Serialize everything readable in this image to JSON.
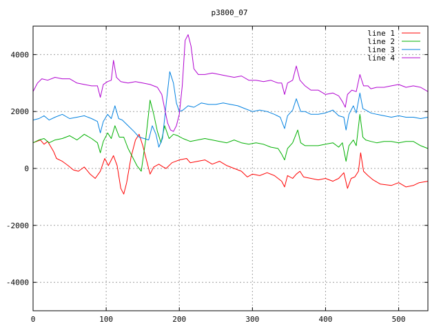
{
  "chart_data": {
    "type": "line",
    "title": "p3800_07",
    "xlabel": "",
    "ylabel": "",
    "xlim": [
      0,
      540
    ],
    "ylim": [
      -5000,
      5000
    ],
    "xticks": [
      0,
      100,
      200,
      300,
      400,
      500
    ],
    "yticks": [
      -4000,
      -2000,
      0,
      2000,
      4000
    ],
    "grid": true,
    "legend_position": "top-right",
    "series": [
      {
        "name": "line 1",
        "color": "#ff0000",
        "points": [
          [
            0,
            900
          ],
          [
            10,
            1000
          ],
          [
            15,
            850
          ],
          [
            20,
            950
          ],
          [
            28,
            600
          ],
          [
            32,
            350
          ],
          [
            40,
            250
          ],
          [
            48,
            100
          ],
          [
            55,
            -50
          ],
          [
            62,
            -100
          ],
          [
            70,
            50
          ],
          [
            78,
            -200
          ],
          [
            85,
            -350
          ],
          [
            92,
            -100
          ],
          [
            98,
            350
          ],
          [
            103,
            100
          ],
          [
            110,
            450
          ],
          [
            115,
            100
          ],
          [
            120,
            -700
          ],
          [
            124,
            -900
          ],
          [
            128,
            -500
          ],
          [
            134,
            400
          ],
          [
            140,
            1000
          ],
          [
            145,
            1200
          ],
          [
            150,
            800
          ],
          [
            155,
            300
          ],
          [
            160,
            -200
          ],
          [
            165,
            50
          ],
          [
            172,
            150
          ],
          [
            178,
            50
          ],
          [
            182,
            0
          ],
          [
            190,
            200
          ],
          [
            200,
            300
          ],
          [
            210,
            350
          ],
          [
            215,
            200
          ],
          [
            225,
            250
          ],
          [
            235,
            300
          ],
          [
            245,
            150
          ],
          [
            255,
            250
          ],
          [
            265,
            100
          ],
          [
            275,
            0
          ],
          [
            285,
            -100
          ],
          [
            293,
            -300
          ],
          [
            300,
            -200
          ],
          [
            310,
            -250
          ],
          [
            320,
            -150
          ],
          [
            330,
            -250
          ],
          [
            340,
            -450
          ],
          [
            344,
            -650
          ],
          [
            348,
            -250
          ],
          [
            355,
            -350
          ],
          [
            360,
            -200
          ],
          [
            365,
            -100
          ],
          [
            370,
            -300
          ],
          [
            380,
            -350
          ],
          [
            390,
            -400
          ],
          [
            400,
            -350
          ],
          [
            410,
            -450
          ],
          [
            418,
            -350
          ],
          [
            425,
            -150
          ],
          [
            430,
            -700
          ],
          [
            435,
            -350
          ],
          [
            440,
            -300
          ],
          [
            445,
            -100
          ],
          [
            448,
            550
          ],
          [
            452,
            -100
          ],
          [
            458,
            -250
          ],
          [
            465,
            -400
          ],
          [
            475,
            -550
          ],
          [
            490,
            -600
          ],
          [
            500,
            -500
          ],
          [
            510,
            -650
          ],
          [
            520,
            -600
          ],
          [
            528,
            -500
          ],
          [
            540,
            -450
          ]
        ]
      },
      {
        "name": "line 2",
        "color": "#00b000",
        "points": [
          [
            0,
            900
          ],
          [
            8,
            1000
          ],
          [
            15,
            1050
          ],
          [
            22,
            900
          ],
          [
            30,
            1000
          ],
          [
            40,
            1050
          ],
          [
            50,
            1150
          ],
          [
            60,
            1000
          ],
          [
            70,
            1200
          ],
          [
            80,
            1050
          ],
          [
            88,
            900
          ],
          [
            92,
            550
          ],
          [
            96,
            950
          ],
          [
            102,
            1250
          ],
          [
            107,
            1050
          ],
          [
            112,
            1500
          ],
          [
            118,
            1100
          ],
          [
            124,
            1100
          ],
          [
            130,
            700
          ],
          [
            136,
            400
          ],
          [
            142,
            100
          ],
          [
            148,
            -100
          ],
          [
            154,
            1000
          ],
          [
            160,
            2400
          ],
          [
            165,
            1900
          ],
          [
            170,
            1300
          ],
          [
            175,
            900
          ],
          [
            180,
            1500
          ],
          [
            186,
            1050
          ],
          [
            192,
            1200
          ],
          [
            198,
            1150
          ],
          [
            205,
            1050
          ],
          [
            215,
            950
          ],
          [
            225,
            1000
          ],
          [
            235,
            1050
          ],
          [
            245,
            1000
          ],
          [
            255,
            950
          ],
          [
            265,
            900
          ],
          [
            275,
            1000
          ],
          [
            285,
            900
          ],
          [
            295,
            850
          ],
          [
            305,
            900
          ],
          [
            315,
            850
          ],
          [
            325,
            750
          ],
          [
            335,
            700
          ],
          [
            340,
            500
          ],
          [
            344,
            300
          ],
          [
            348,
            700
          ],
          [
            355,
            900
          ],
          [
            362,
            1350
          ],
          [
            366,
            900
          ],
          [
            372,
            800
          ],
          [
            380,
            800
          ],
          [
            390,
            800
          ],
          [
            400,
            850
          ],
          [
            410,
            900
          ],
          [
            418,
            750
          ],
          [
            423,
            900
          ],
          [
            428,
            250
          ],
          [
            432,
            800
          ],
          [
            438,
            1000
          ],
          [
            442,
            800
          ],
          [
            447,
            1900
          ],
          [
            451,
            1100
          ],
          [
            455,
            1000
          ],
          [
            462,
            950
          ],
          [
            470,
            900
          ],
          [
            480,
            950
          ],
          [
            490,
            950
          ],
          [
            500,
            900
          ],
          [
            510,
            950
          ],
          [
            520,
            950
          ],
          [
            530,
            800
          ],
          [
            540,
            700
          ]
        ]
      },
      {
        "name": "line 3",
        "color": "#0080e0",
        "points": [
          [
            0,
            1700
          ],
          [
            8,
            1750
          ],
          [
            15,
            1850
          ],
          [
            22,
            1700
          ],
          [
            30,
            1800
          ],
          [
            40,
            1900
          ],
          [
            50,
            1750
          ],
          [
            60,
            1800
          ],
          [
            70,
            1850
          ],
          [
            80,
            1750
          ],
          [
            88,
            1650
          ],
          [
            92,
            1250
          ],
          [
            96,
            1650
          ],
          [
            102,
            1900
          ],
          [
            107,
            1750
          ],
          [
            112,
            2200
          ],
          [
            117,
            1750
          ],
          [
            122,
            1700
          ],
          [
            130,
            1500
          ],
          [
            138,
            1300
          ],
          [
            145,
            1100
          ],
          [
            152,
            1050
          ],
          [
            158,
            1000
          ],
          [
            163,
            1500
          ],
          [
            168,
            1200
          ],
          [
            172,
            750
          ],
          [
            177,
            1050
          ],
          [
            183,
            2500
          ],
          [
            187,
            3400
          ],
          [
            192,
            3000
          ],
          [
            196,
            2300
          ],
          [
            200,
            2000
          ],
          [
            205,
            2050
          ],
          [
            212,
            2200
          ],
          [
            220,
            2150
          ],
          [
            230,
            2300
          ],
          [
            240,
            2250
          ],
          [
            250,
            2250
          ],
          [
            260,
            2300
          ],
          [
            270,
            2250
          ],
          [
            280,
            2200
          ],
          [
            290,
            2100
          ],
          [
            300,
            2000
          ],
          [
            310,
            2050
          ],
          [
            320,
            2000
          ],
          [
            330,
            1900
          ],
          [
            338,
            1800
          ],
          [
            344,
            1400
          ],
          [
            348,
            1850
          ],
          [
            355,
            2050
          ],
          [
            360,
            2450
          ],
          [
            366,
            2000
          ],
          [
            372,
            2000
          ],
          [
            380,
            1900
          ],
          [
            390,
            1900
          ],
          [
            400,
            1950
          ],
          [
            410,
            2050
          ],
          [
            418,
            1850
          ],
          [
            425,
            1800
          ],
          [
            428,
            1350
          ],
          [
            432,
            1900
          ],
          [
            438,
            2200
          ],
          [
            442,
            1950
          ],
          [
            447,
            2650
          ],
          [
            451,
            2100
          ],
          [
            455,
            2050
          ],
          [
            462,
            1950
          ],
          [
            470,
            1900
          ],
          [
            480,
            1850
          ],
          [
            490,
            1800
          ],
          [
            500,
            1850
          ],
          [
            510,
            1800
          ],
          [
            520,
            1800
          ],
          [
            530,
            1750
          ],
          [
            540,
            1800
          ]
        ]
      },
      {
        "name": "line 4",
        "color": "#b000d0",
        "points": [
          [
            0,
            2700
          ],
          [
            6,
            3000
          ],
          [
            12,
            3150
          ],
          [
            20,
            3100
          ],
          [
            30,
            3200
          ],
          [
            40,
            3150
          ],
          [
            50,
            3150
          ],
          [
            60,
            3000
          ],
          [
            70,
            2950
          ],
          [
            80,
            2900
          ],
          [
            88,
            2900
          ],
          [
            92,
            2500
          ],
          [
            96,
            2950
          ],
          [
            102,
            3050
          ],
          [
            107,
            3100
          ],
          [
            110,
            3800
          ],
          [
            114,
            3200
          ],
          [
            120,
            3050
          ],
          [
            130,
            3000
          ],
          [
            140,
            3050
          ],
          [
            150,
            3000
          ],
          [
            160,
            2950
          ],
          [
            170,
            2850
          ],
          [
            176,
            2600
          ],
          [
            180,
            2100
          ],
          [
            184,
            1600
          ],
          [
            188,
            1350
          ],
          [
            192,
            1300
          ],
          [
            196,
            1500
          ],
          [
            200,
            1900
          ],
          [
            204,
            2900
          ],
          [
            208,
            4500
          ],
          [
            212,
            4700
          ],
          [
            216,
            4300
          ],
          [
            220,
            3500
          ],
          [
            226,
            3300
          ],
          [
            235,
            3300
          ],
          [
            245,
            3350
          ],
          [
            255,
            3300
          ],
          [
            265,
            3250
          ],
          [
            275,
            3200
          ],
          [
            285,
            3250
          ],
          [
            295,
            3100
          ],
          [
            305,
            3100
          ],
          [
            315,
            3050
          ],
          [
            325,
            3100
          ],
          [
            335,
            3000
          ],
          [
            340,
            3000
          ],
          [
            344,
            2600
          ],
          [
            348,
            3000
          ],
          [
            355,
            3100
          ],
          [
            360,
            3600
          ],
          [
            365,
            3100
          ],
          [
            372,
            2900
          ],
          [
            380,
            2750
          ],
          [
            390,
            2750
          ],
          [
            400,
            2600
          ],
          [
            410,
            2650
          ],
          [
            418,
            2550
          ],
          [
            423,
            2350
          ],
          [
            427,
            2150
          ],
          [
            430,
            2600
          ],
          [
            436,
            2750
          ],
          [
            442,
            2700
          ],
          [
            447,
            3300
          ],
          [
            452,
            2900
          ],
          [
            458,
            2900
          ],
          [
            462,
            2800
          ],
          [
            470,
            2850
          ],
          [
            480,
            2850
          ],
          [
            490,
            2900
          ],
          [
            500,
            2950
          ],
          [
            510,
            2850
          ],
          [
            520,
            2900
          ],
          [
            530,
            2850
          ],
          [
            540,
            2700
          ]
        ]
      }
    ]
  }
}
